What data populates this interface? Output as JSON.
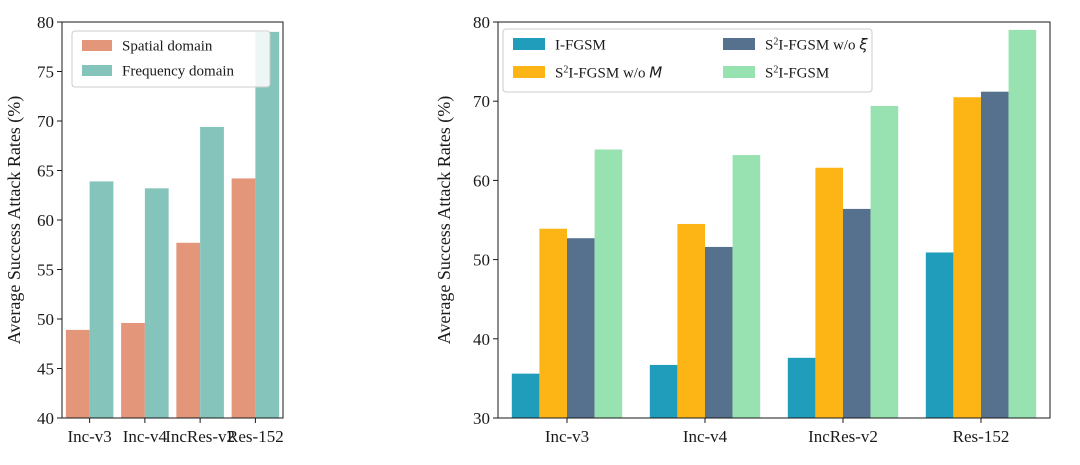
{
  "chart_data": [
    {
      "type": "bar",
      "title": "",
      "xlabel": "",
      "ylabel": "Average Success Attack Rates (%)",
      "ylim": [
        40,
        80
      ],
      "yticks": [
        40,
        45,
        50,
        55,
        60,
        65,
        70,
        75,
        80
      ],
      "categories": [
        "Inc-v3",
        "Inc-v4",
        "IncRes-v2",
        "Res-152"
      ],
      "legend_position": "top-left",
      "series": [
        {
          "name": "Spatial domain",
          "color": "#e3967a",
          "values": [
            48.9,
            49.6,
            57.7,
            64.2
          ]
        },
        {
          "name": "Frequency domain",
          "color": "#84c4bb",
          "values": [
            63.9,
            63.2,
            69.4,
            79.0
          ]
        }
      ]
    },
    {
      "type": "bar",
      "title": "",
      "xlabel": "",
      "ylabel": "Average Success Attack Rates (%)",
      "ylim": [
        30,
        80
      ],
      "yticks": [
        30,
        40,
        50,
        60,
        70,
        80
      ],
      "categories": [
        "Inc-v3",
        "Inc-v4",
        "IncRes-v2",
        "Res-152"
      ],
      "legend_position": "top-left",
      "series": [
        {
          "name": "I-FGSM",
          "color": "#1f9dbb",
          "values": [
            35.6,
            36.7,
            37.6,
            50.9
          ]
        },
        {
          "name": "S²I-FGSM w/o M",
          "color": "#fdb515",
          "values": [
            53.9,
            54.5,
            61.6,
            70.5
          ]
        },
        {
          "name": "S²I-FGSM w/o ξ",
          "color": "#56718d",
          "values": [
            52.7,
            51.6,
            56.4,
            71.2
          ]
        },
        {
          "name": "S²I-FGSM",
          "color": "#98e1b0",
          "values": [
            63.9,
            63.2,
            69.4,
            79.0
          ]
        }
      ]
    }
  ]
}
